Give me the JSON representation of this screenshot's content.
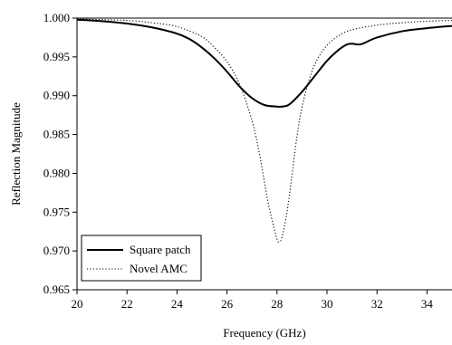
{
  "chart_data": {
    "type": "line",
    "xlabel": "Frequency (GHz)",
    "ylabel": "Reflection Magnitude",
    "xlim": [
      20,
      35
    ],
    "ylim": [
      0.965,
      1.0
    ],
    "x_ticks": [
      "20",
      "22",
      "24",
      "26",
      "28",
      "30",
      "32",
      "34"
    ],
    "y_ticks": [
      "0.965",
      "0.970",
      "0.975",
      "0.980",
      "0.985",
      "0.990",
      "0.995",
      "1.000"
    ],
    "grid": false,
    "legend_position": "bottom-left",
    "series": [
      {
        "name": "Square patch",
        "style": "solid",
        "color": "#000000",
        "x": [
          20,
          21,
          22,
          23,
          24,
          24.5,
          25,
          25.5,
          26,
          26.5,
          27,
          27.5,
          28,
          28.2,
          28.5,
          29,
          29.5,
          30,
          30.5,
          30.8,
          31,
          31.3,
          31.5,
          32,
          33,
          34,
          35
        ],
        "y": [
          0.9998,
          0.9996,
          0.9993,
          0.9988,
          0.998,
          0.9973,
          0.9962,
          0.9948,
          0.9931,
          0.9912,
          0.9897,
          0.9888,
          0.9886,
          0.9886,
          0.9889,
          0.9905,
          0.9925,
          0.9945,
          0.996,
          0.9966,
          0.9967,
          0.9966,
          0.9968,
          0.9975,
          0.9983,
          0.9987,
          0.999
        ]
      },
      {
        "name": "Novel AMC",
        "style": "dotted",
        "color": "#000000",
        "x": [
          20,
          21,
          22,
          23,
          24,
          25,
          25.5,
          26,
          26.5,
          27,
          27.3,
          27.6,
          27.8,
          28,
          28.1,
          28.2,
          28.4,
          28.6,
          28.8,
          29,
          29.3,
          29.6,
          30,
          30.5,
          31,
          32,
          33,
          34,
          35
        ],
        "y": [
          0.9999,
          0.9998,
          0.9997,
          0.9994,
          0.9989,
          0.9976,
          0.9962,
          0.9944,
          0.9915,
          0.9868,
          0.9825,
          0.977,
          0.974,
          0.9715,
          0.9712,
          0.9718,
          0.975,
          0.9798,
          0.9848,
          0.9885,
          0.9922,
          0.9946,
          0.9965,
          0.9978,
          0.9985,
          0.9991,
          0.9994,
          0.9996,
          0.9997
        ]
      }
    ]
  }
}
